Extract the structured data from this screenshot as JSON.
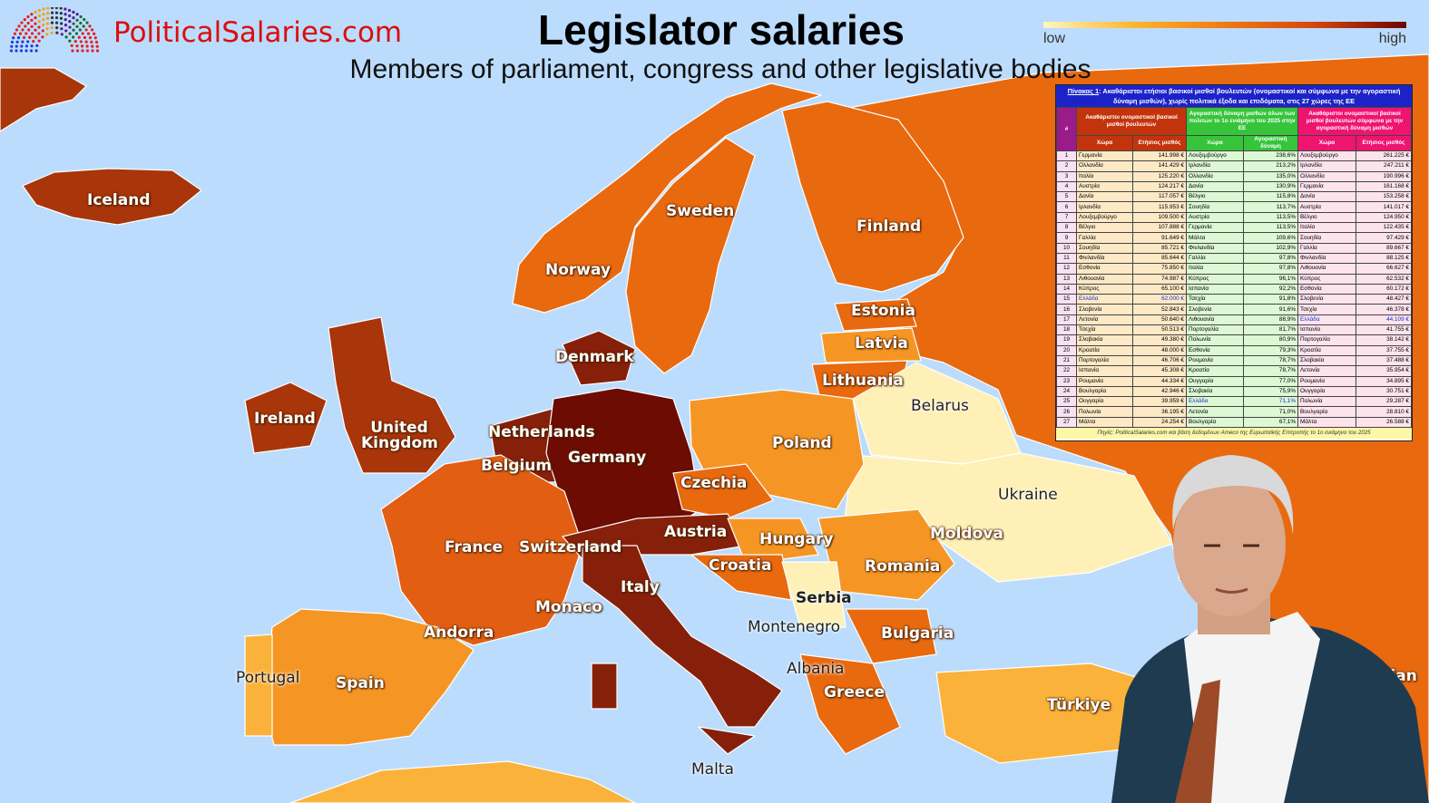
{
  "header": {
    "site_name": "PoliticalSalaries.com",
    "title": "Legislator salaries",
    "subtitle": "Members of parliament, congress and other legislative bodies"
  },
  "legend": {
    "low": "low",
    "high": "high",
    "gradient": [
      "#fff6c2",
      "#fdb52c",
      "#f07a12",
      "#d6460c",
      "#6b0503"
    ]
  },
  "colors": {
    "sea": "#bcdcfd",
    "level1": "#fff0b8",
    "level2": "#fbb23a",
    "level3": "#f59624",
    "level4": "#e9690f",
    "level5": "#a9350a",
    "level6": "#86200a",
    "level7": "#6c0c03"
  },
  "map_labels": [
    "Iceland",
    "Sweden",
    "Finland",
    "Norway",
    "Estonia",
    "Latvia",
    "Denmark",
    "Lithuania",
    "Belarus",
    "Ireland",
    "United Kingdom",
    "Netherlands",
    "Germany",
    "Belgium",
    "Poland",
    "Czechia",
    "Ukraine",
    "France",
    "Switzerland",
    "Austria",
    "Hungary",
    "Moldova",
    "Romania",
    "Croatia",
    "Serbia",
    "Italy",
    "Monaco",
    "Andorra",
    "Montenegro",
    "Bulgaria",
    "Albania",
    "Portugal",
    "Spain",
    "Greece",
    "Türkiye",
    "Malta",
    "Azerbaijan"
  ],
  "table": {
    "caption_label": "Πίνακας 1",
    "caption_text": ": Ακαθάριστοι ετήσιοι βασικοί μισθοί βουλευτών (ονομαστικοί και σύμφωνα με την αγοραστική δύναμη μισθών), χωρίς πολιτικά έξοδα και επιδόματα, στις 27 χώρες της ΕΕ",
    "num_header": "#",
    "group_headers": [
      "Ακαθάριστοι ονομαστικοί βασικοί μισθοί βουλευτών",
      "Αγοραστική δύναμη μισθών όλων των πολιτών το 1ο ενιάμηνο του 2025 στην ΕΕ",
      "Ακαθάριστοι ονομαστικοί βασικοί μισθοί βουλευτών σύμφωνα με την αγοραστική δύναμη μισθών"
    ],
    "sub_headers": [
      "Χώρα",
      "Ετήσιος μισθός",
      "Χώρα",
      "Αγοραστική δύναμη",
      "Χώρα",
      "Ετήσιος μισθός"
    ],
    "rows": [
      [
        "1",
        "Γερμανία",
        "141.998 €",
        "Λουξεμβούργο",
        "238,6%",
        "Λουξεμβούργο",
        "261.225 €"
      ],
      [
        "2",
        "Ολλανδία",
        "141.429 €",
        "Ιρλανδία",
        "213,2%",
        "Ιρλανδία",
        "247.211 €"
      ],
      [
        "3",
        "Ιταλία",
        "125.220 €",
        "Ολλανδία",
        "135,0%",
        "Ολλανδία",
        "190.996 €"
      ],
      [
        "4",
        "Αυστρία",
        "124.217 €",
        "Δανία",
        "130,9%",
        "Γερμανία",
        "161.168 €"
      ],
      [
        "5",
        "Δανία",
        "117.057 €",
        "Βέλγιο",
        "115,8%",
        "Δανία",
        "153.258 €"
      ],
      [
        "6",
        "Ιρλανδία",
        "115.953 €",
        "Σουηδία",
        "113,7%",
        "Αυστρία",
        "141.017 €"
      ],
      [
        "7",
        "Λουξεμβούργο",
        "109.500 €",
        "Αυστρία",
        "113,5%",
        "Βέλγιο",
        "124.950 €"
      ],
      [
        "8",
        "Βέλγιο",
        "107.888 €",
        "Γερμανία",
        "113,5%",
        "Ιταλία",
        "122.435 €"
      ],
      [
        "9",
        "Γαλλία",
        "91.649 €",
        "Μάλτα",
        "109,6%",
        "Σουηδία",
        "97.429 €"
      ],
      [
        "10",
        "Σουηδία",
        "85.721 €",
        "Φινλανδία",
        "102,9%",
        "Γαλλία",
        "89.667 €"
      ],
      [
        "11",
        "Φινλανδία",
        "85.644 €",
        "Γαλλία",
        "97,8%",
        "Φινλανδία",
        "88.125 €"
      ],
      [
        "12",
        "Εσθονία",
        "75.850 €",
        "Ιταλία",
        "97,8%",
        "Λιθουανία",
        "66.627 €"
      ],
      [
        "13",
        "Λιθουανία",
        "74.987 €",
        "Κύπρος",
        "96,1%",
        "Κύπρος",
        "62.532 €"
      ],
      [
        "14",
        "Κύπρος",
        "65.100 €",
        "Ισπανία",
        "92,2%",
        "Εσθονία",
        "60.172 €"
      ],
      [
        "15",
        "Ελλάδα",
        "62.000 €",
        "Τσεχία",
        "91,8%",
        "Σλοβενία",
        "48.427 €"
      ],
      [
        "16",
        "Σλοβενία",
        "52.843 €",
        "Σλοβενία",
        "91,6%",
        "Τσεχία",
        "46.378 €"
      ],
      [
        "17",
        "Λετονία",
        "50.640 €",
        "Λιθουανία",
        "88,9%",
        "Ελλάδα",
        "44.109 €"
      ],
      [
        "18",
        "Τσεχία",
        "50.513 €",
        "Πορτογαλία",
        "81,7%",
        "Ισπανία",
        "41.755 €"
      ],
      [
        "19",
        "Σλοβακία",
        "49.380 €",
        "Πολωνία",
        "80,9%",
        "Πορτογαλία",
        "38.142 €"
      ],
      [
        "20",
        "Κροατία",
        "48.000 €",
        "Εσθονία",
        "79,3%",
        "Κροατία",
        "37.755 €"
      ],
      [
        "21",
        "Πορτογαλία",
        "46.706 €",
        "Ρουμανία",
        "78,7%",
        "Σλοβακία",
        "37.488 €"
      ],
      [
        "22",
        "Ισπανία",
        "45.308 €",
        "Κροατία",
        "78,7%",
        "Λετονία",
        "35.954 €"
      ],
      [
        "23",
        "Ρουμανία",
        "44.334 €",
        "Ουγγαρία",
        "77,0%",
        "Ρουμανία",
        "34.895 €"
      ],
      [
        "24",
        "Βουλγαρία",
        "42.946 €",
        "Σλοβακία",
        "75,9%",
        "Ουγγαρία",
        "30.751 €"
      ],
      [
        "25",
        "Ουγγαρία",
        "39.959 €",
        "Ελλάδα",
        "71,1%",
        "Πολωνία",
        "29.287 €"
      ],
      [
        "26",
        "Πολωνία",
        "36.195 €",
        "Λετονία",
        "71,0%",
        "Βουλγαρία",
        "28.810 €"
      ],
      [
        "27",
        "Μάλτα",
        "24.254 €",
        "Βουλγαρία",
        "67,1%",
        "Μάλτα",
        "26.588 €"
      ]
    ],
    "highlight": "Ελλάδα",
    "footer": "Πηγές: PoliticalSalaries.com και βάση δεδομένων Ameco της Ευρωπαϊκής Επιτροπής το 1ο ενιάμηνο του 2025"
  }
}
